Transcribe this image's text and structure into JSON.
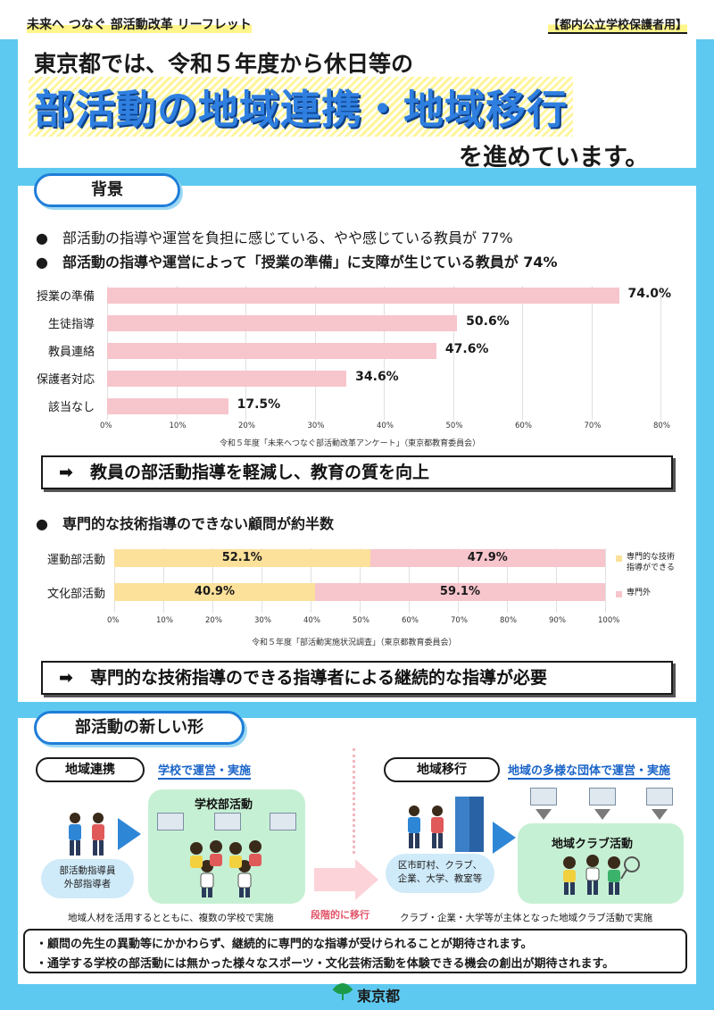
{
  "header": {
    "leaflet_label": "未来へ つなぐ 部活動改革 リーフレット",
    "audience": "【都内公立学校保護者用】",
    "line1": "東京都では、令和５年度から休日等の",
    "line2": "部活動の地域連携・地域移行",
    "line3": "を進めています。"
  },
  "background": {
    "pill": "背景",
    "bullet1": "部活動の指導や運営を負担に感じている、やや感じている教員が 77%",
    "bullet2": "部活動の指導や運営によって「授業の準備」に支障が生じている教員が 74%",
    "bullet3": "専門的な技術指導のできない顧問が約半数",
    "conclusion1": "教員の部活動指導を軽減し、教育の質を向上",
    "conclusion2": "専門的な技術指導のできる指導者による継続的な指導が必要",
    "arrow": "➡",
    "bullet_mark": "●"
  },
  "chart_data": [
    {
      "type": "bar",
      "orientation": "horizontal",
      "categories": [
        "授業の準備",
        "生徒指導",
        "教員連絡",
        "保護者対応",
        "該当なし"
      ],
      "values": [
        74.0,
        50.6,
        47.6,
        34.6,
        17.5
      ],
      "value_labels": [
        "74.0%",
        "50.6%",
        "47.6%",
        "34.6%",
        "17.5%"
      ],
      "xlim": [
        0,
        80
      ],
      "ticks": [
        "0%",
        "10%",
        "20%",
        "30%",
        "40%",
        "50%",
        "60%",
        "70%",
        "80%"
      ],
      "source": "令和５年度「未来へつなぐ部活動改革アンケート」（東京都教育委員会）",
      "color": "#f7c5cc"
    },
    {
      "type": "bar",
      "orientation": "horizontal",
      "stacked": true,
      "categories": [
        "運動部活動",
        "文化部活動"
      ],
      "series": [
        {
          "name": "専門的な技術指導ができる",
          "values": [
            52.1,
            40.9
          ],
          "labels": [
            "52.1%",
            "40.9%"
          ],
          "color": "#fce19a"
        },
        {
          "name": "専門外",
          "values": [
            47.9,
            59.1
          ],
          "labels": [
            "47.9%",
            "59.1%"
          ],
          "color": "#f7c5cc"
        }
      ],
      "legend_lines": [
        [
          "専門的な技術",
          "指導ができる"
        ],
        [
          "専門外"
        ]
      ],
      "xlim": [
        0,
        100
      ],
      "ticks": [
        "0%",
        "10%",
        "20%",
        "30%",
        "40%",
        "50%",
        "60%",
        "70%",
        "80%",
        "90%",
        "100%"
      ],
      "source": "令和５年度「部活動実施状況調査」（東京都教育委員会）"
    }
  ],
  "new_form": {
    "pill": "部活動の新しい形",
    "left_tag": "地域連携",
    "left_sub": "学校で運営・実施",
    "school_club": "学校部活動",
    "bubble_left_1": "部活動指導員",
    "bubble_left_2": "外部指導者",
    "left_caption": "地域人材を活用するとともに、複数の学校で実施",
    "transition": "段階的に移行",
    "right_tag": "地域移行",
    "right_sub": "地域の多様な団体で運営・実施",
    "club_activity": "地域クラブ活動",
    "bubble_right_1": "区市町村、クラブ、",
    "bubble_right_2": "企業、大学、教室等",
    "right_caption": "クラブ・企業・大学等が主体となった地域クラブ活動で実施"
  },
  "notes": [
    "・顧問の先生の異動等にかかわらず、継続的に専門的な指導が受けられることが期待されます。",
    "・通学する学校の部活動には無かった様々なスポーツ・文化芸術活動を体験できる機会の創出が期待されます。"
  ],
  "footer": {
    "logo_text": "東京都"
  }
}
